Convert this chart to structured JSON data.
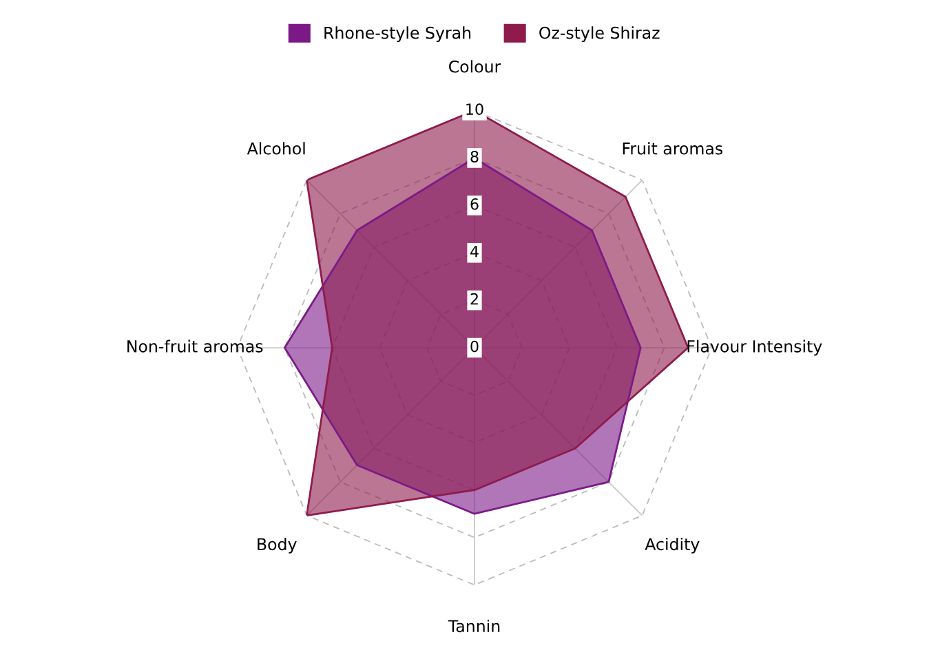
{
  "chart_data": {
    "type": "radar",
    "categories": [
      "Colour",
      "Fruit aromas",
      "Flavour Intensity",
      "Acidity",
      "Tannin",
      "Body",
      "Non-fruit aromas",
      "Alcohol"
    ],
    "series": [
      {
        "name": "Rhone-style Syrah",
        "color": "#7b1a87",
        "values": [
          8,
          7,
          7,
          8,
          7,
          7,
          8,
          7
        ]
      },
      {
        "name": "Oz-style Shiraz",
        "color": "#8e1b4c",
        "values": [
          10,
          9,
          9,
          6,
          6,
          10,
          6,
          10
        ]
      }
    ],
    "ylim": [
      0,
      10
    ],
    "yticks": [
      0,
      2,
      4,
      6,
      8,
      10
    ],
    "grid": true,
    "legend": "top",
    "marker": "none",
    "line_style": "solid"
  }
}
